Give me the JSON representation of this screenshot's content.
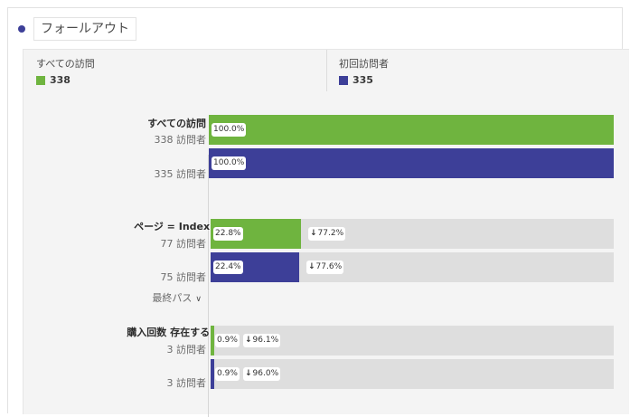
{
  "header": {
    "title": "フォールアウト"
  },
  "colors": {
    "green": "#6fb43f",
    "blue": "#3d3f98",
    "grey": "#dedede"
  },
  "legend": [
    {
      "name": "すべての訪問",
      "value": "338",
      "color": "#6fb43f"
    },
    {
      "name": "初回訪問者",
      "value": "335",
      "color": "#3d3f98"
    }
  ],
  "steps": [
    {
      "name": "すべての訪問",
      "rows": [
        {
          "count": "338 訪問者",
          "pct": "100.0%",
          "fraction": 1.0,
          "color": "green"
        },
        {
          "count": "335 訪問者",
          "pct": "100.0%",
          "fraction": 1.0,
          "color": "blue"
        }
      ]
    },
    {
      "name": "ページ = Index",
      "remove_icon": "close-icon",
      "final_path": "最終パス",
      "rows": [
        {
          "count": "77 訪問者",
          "pct": "22.8%",
          "drop": "77.2%",
          "fraction": 0.228,
          "color": "green"
        },
        {
          "count": "75 訪問者",
          "pct": "22.4%",
          "drop": "77.6%",
          "fraction": 0.224,
          "color": "blue"
        }
      ]
    },
    {
      "name": "購入回数 存在する",
      "remove_icon": "close-icon",
      "rows": [
        {
          "count": "3 訪問者",
          "pct": "0.9%",
          "drop": "96.1%",
          "fraction": 0.009,
          "color": "green"
        },
        {
          "count": "3 訪問者",
          "pct": "0.9%",
          "drop": "96.0%",
          "fraction": 0.009,
          "color": "blue"
        }
      ]
    }
  ]
}
